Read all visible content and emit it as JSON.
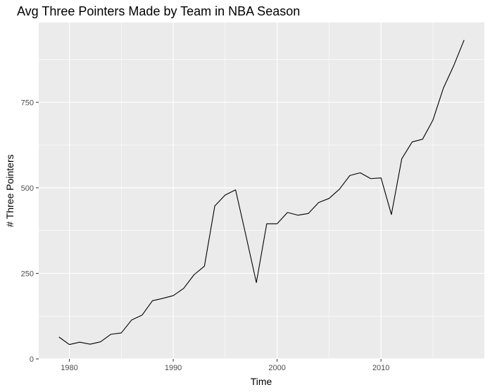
{
  "chart_data": {
    "type": "line",
    "title": "Avg Three Pointers Made by Team in NBA Season",
    "xlabel": "Time",
    "ylabel": "# Three Pointers",
    "xlim": [
      1977.05,
      2019.95
    ],
    "ylim": [
      0,
      983
    ],
    "x_ticks": [
      1980,
      1990,
      2000,
      2010
    ],
    "x_minor": [
      1985,
      1995,
      2005,
      2015
    ],
    "y_ticks": [
      0,
      250,
      500,
      750
    ],
    "y_minor": [
      125,
      375,
      625,
      875
    ],
    "grid": true,
    "panel_background": "#EBEBEB",
    "grid_color": "#FFFFFF",
    "line_color": "#000000",
    "series": [
      {
        "x": [
          1979,
          1980,
          1981,
          1982,
          1983,
          1984,
          1985,
          1986,
          1987,
          1988,
          1989,
          1990,
          1991,
          1992,
          1993,
          1994,
          1995,
          1996,
          1997,
          1998,
          1999,
          2000,
          2001,
          2002,
          2003,
          2004,
          2005,
          2006,
          2007,
          2008,
          2009,
          2010,
          2011,
          2012,
          2013,
          2014,
          2015,
          2016,
          2017,
          2018
        ],
        "values": [
          64,
          42,
          49,
          43,
          50,
          72,
          76,
          114,
          128,
          170,
          177,
          185,
          206,
          246,
          271,
          447,
          479,
          494,
          360,
          223,
          395,
          395,
          428,
          420,
          425,
          457,
          469,
          496,
          536,
          544,
          527,
          529,
          422,
          585,
          634,
          642,
          698,
          791,
          857,
          932
        ]
      }
    ]
  }
}
